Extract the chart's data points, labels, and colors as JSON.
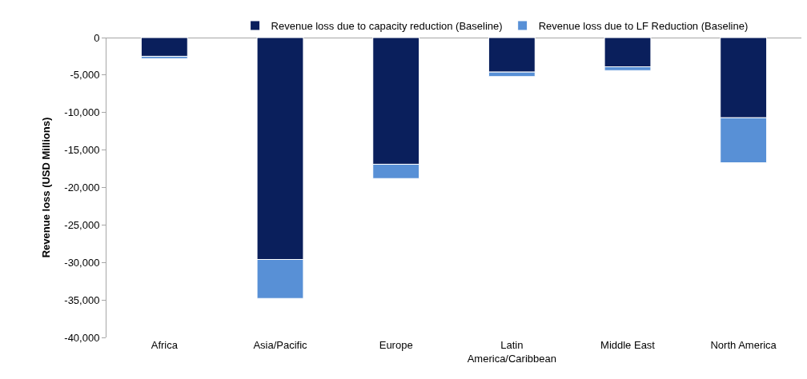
{
  "chart_data": {
    "type": "bar",
    "categories": [
      "Africa",
      "Asia/Pacific",
      "Europe",
      "Latin America/Caribbean",
      "Middle East",
      "North America"
    ],
    "series": [
      {
        "name": "Revenue loss due to capacity reduction (Baseline)",
        "color": "#0a1f5c",
        "values": [
          -2500,
          -29600,
          -16900,
          -4600,
          -3900,
          -10700
        ]
      },
      {
        "name": "Revenue loss due to LF Reduction (Baseline)",
        "color": "#5890d6",
        "values": [
          -300,
          -5200,
          -1900,
          -600,
          -500,
          -6000
        ]
      }
    ],
    "stacked": true,
    "ylabel": "Revenue loss (USD Millions)",
    "ylim": [
      -40000,
      0
    ],
    "yticks": [
      {
        "value": 0,
        "label": "0"
      },
      {
        "value": -5000,
        "label": "-5,000"
      },
      {
        "value": -10000,
        "label": "-10,000"
      },
      {
        "value": -15000,
        "label": "-15,000"
      },
      {
        "value": -20000,
        "label": "-20,000"
      },
      {
        "value": -25000,
        "label": "-25,000"
      },
      {
        "value": -30000,
        "label": "-30,000"
      },
      {
        "value": -35000,
        "label": "-35,000"
      },
      {
        "value": -40000,
        "label": "-40,000"
      }
    ],
    "legend": "top"
  }
}
